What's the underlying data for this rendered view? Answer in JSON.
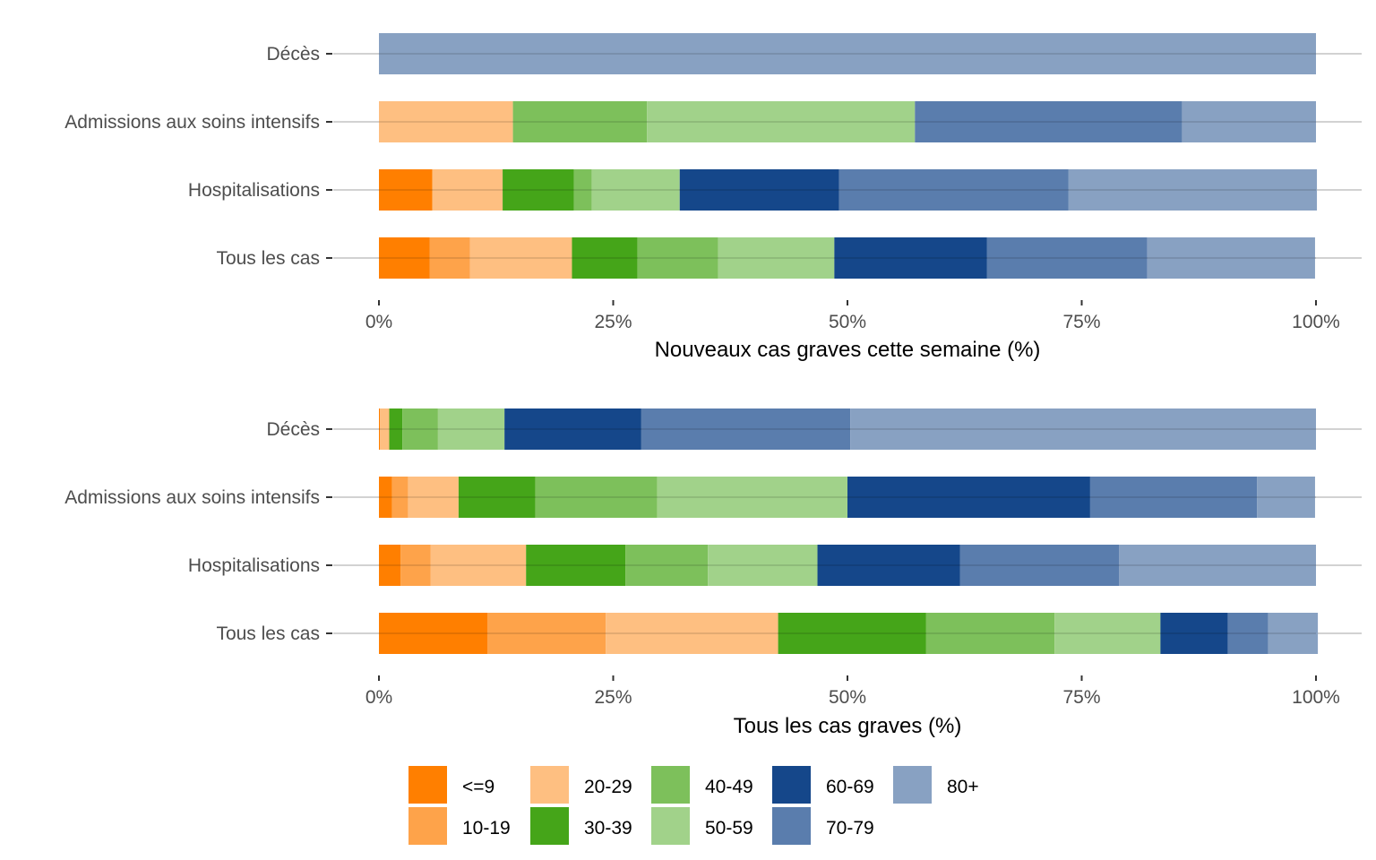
{
  "chart_data": [
    {
      "type": "bar",
      "orientation": "horizontal",
      "stacked": true,
      "title": "",
      "xlabel": "Nouveaux cas graves cette semaine (%)",
      "ylabel": "",
      "xlim": [
        0,
        100
      ],
      "xticks": [
        "0%",
        "25%",
        "50%",
        "75%",
        "100%"
      ],
      "xtick_values": [
        0,
        25,
        50,
        75,
        100
      ],
      "grid": "horizontal",
      "categories": [
        "Décès",
        "Admissions aux soins intensifs",
        "Hospitalisations",
        "Tous les cas"
      ],
      "series": [
        {
          "name": "<=9",
          "values": [
            0,
            0,
            5.7,
            5.4
          ]
        },
        {
          "name": "10-19",
          "values": [
            0,
            0,
            0,
            4.3
          ]
        },
        {
          "name": "20-29",
          "values": [
            0,
            14.3,
            7.5,
            10.9
          ]
        },
        {
          "name": "30-39",
          "values": [
            0,
            0,
            7.6,
            7.0
          ]
        },
        {
          "name": "40-49",
          "values": [
            0,
            14.3,
            1.9,
            8.6
          ]
        },
        {
          "name": "50-59",
          "values": [
            0,
            28.6,
            9.4,
            12.4
          ]
        },
        {
          "name": "60-69",
          "values": [
            0,
            0,
            17.0,
            16.3
          ]
        },
        {
          "name": "70-79",
          "values": [
            0,
            28.5,
            24.5,
            17.1
          ]
        },
        {
          "name": "80+",
          "values": [
            100,
            14.3,
            26.5,
            17.9
          ]
        }
      ]
    },
    {
      "type": "bar",
      "orientation": "horizontal",
      "stacked": true,
      "title": "",
      "xlabel": "Tous les cas graves (%)",
      "ylabel": "",
      "xlim": [
        0,
        100
      ],
      "xticks": [
        "0%",
        "25%",
        "50%",
        "75%",
        "100%"
      ],
      "xtick_values": [
        0,
        25,
        50,
        75,
        100
      ],
      "grid": "horizontal",
      "categories": [
        "Décès",
        "Admissions aux soins intensifs",
        "Hospitalisations",
        "Tous les cas"
      ],
      "series": [
        {
          "name": "<=9",
          "values": [
            0.1,
            1.4,
            2.3,
            11.6
          ]
        },
        {
          "name": "10-19",
          "values": [
            0,
            1.7,
            3.2,
            12.6
          ]
        },
        {
          "name": "20-29",
          "values": [
            1.0,
            5.4,
            10.2,
            18.4
          ]
        },
        {
          "name": "30-39",
          "values": [
            1.4,
            8.2,
            10.6,
            15.8
          ]
        },
        {
          "name": "40-49",
          "values": [
            3.8,
            13.0,
            8.8,
            13.7
          ]
        },
        {
          "name": "50-59",
          "values": [
            7.1,
            20.3,
            11.7,
            11.3
          ]
        },
        {
          "name": "60-69",
          "values": [
            14.6,
            25.9,
            15.2,
            7.2
          ]
        },
        {
          "name": "70-79",
          "values": [
            22.3,
            17.8,
            17.0,
            4.3
          ]
        },
        {
          "name": "80+",
          "values": [
            49.7,
            6.2,
            21.0,
            5.3
          ]
        }
      ]
    }
  ],
  "legend": {
    "placement": "bottom",
    "items": [
      {
        "label": "<=9",
        "color": "#ff7f00"
      },
      {
        "label": "10-19",
        "color": "#fea34a"
      },
      {
        "label": "20-29",
        "color": "#febf81"
      },
      {
        "label": "30-39",
        "color": "#45a519"
      },
      {
        "label": "40-49",
        "color": "#7dc05b"
      },
      {
        "label": "50-59",
        "color": "#a1d28a"
      },
      {
        "label": "60-69",
        "color": "#15478a"
      },
      {
        "label": "70-79",
        "color": "#5a7dad"
      },
      {
        "label": "80+",
        "color": "#88a1c2"
      }
    ]
  }
}
